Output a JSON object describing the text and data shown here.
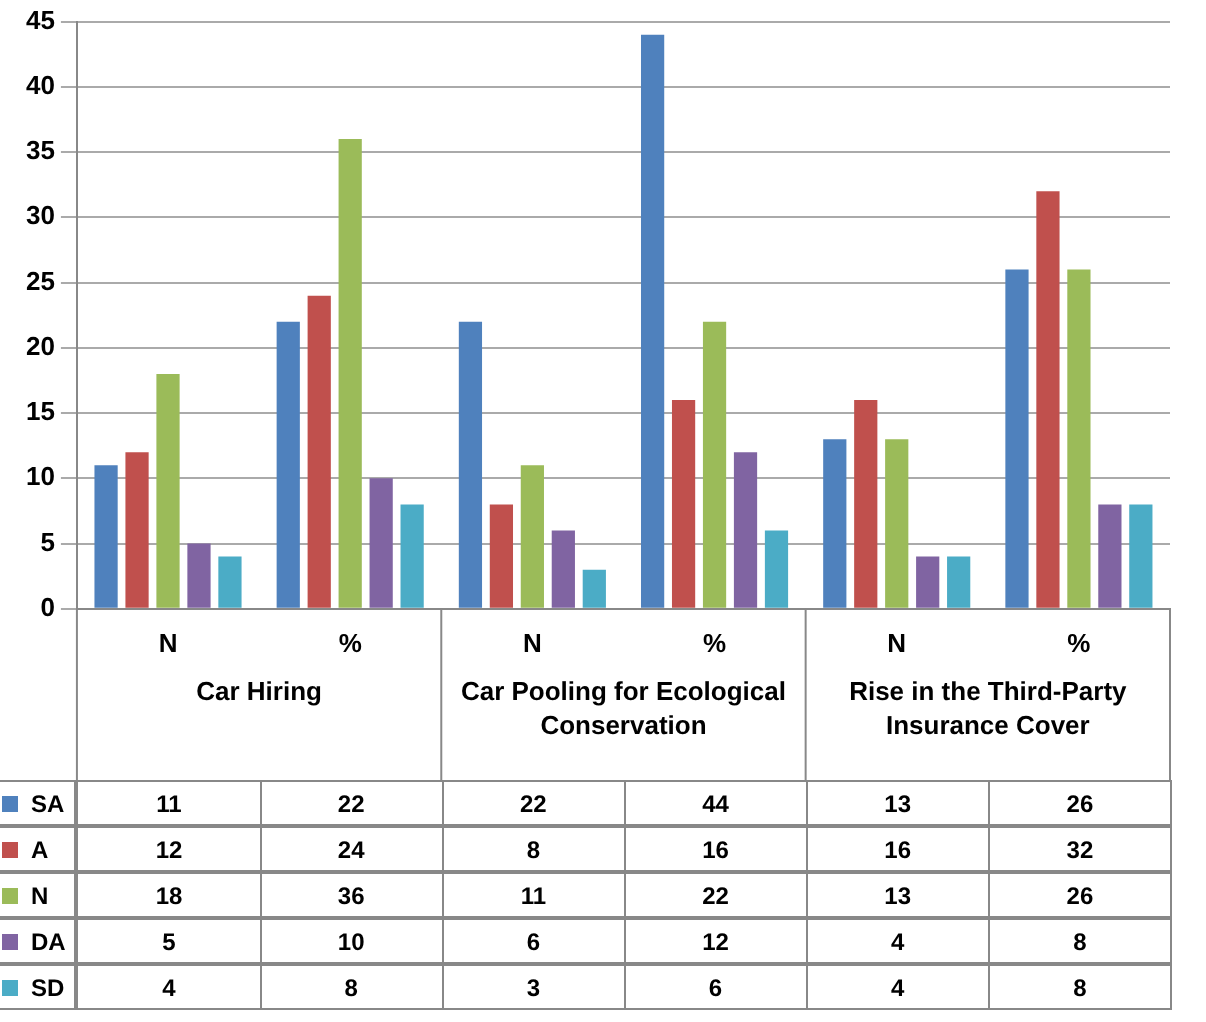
{
  "chart_data": {
    "type": "bar",
    "categories": [
      "N",
      "%",
      "N",
      "%",
      "N",
      "%"
    ],
    "annotations": [
      "Car Hiring",
      "Car Pooling for Ecological Conservation",
      "Rise in the Third-Party Insurance Cover"
    ],
    "series": [
      {
        "name": "SA",
        "color": "#4f81bd",
        "values": [
          11,
          22,
          22,
          44,
          13,
          26
        ]
      },
      {
        "name": "A",
        "color": "#c0504d",
        "values": [
          12,
          24,
          8,
          16,
          16,
          32
        ]
      },
      {
        "name": "N",
        "color": "#9bbb59",
        "values": [
          18,
          36,
          11,
          22,
          13,
          26
        ]
      },
      {
        "name": "DA",
        "color": "#8064a2",
        "values": [
          5,
          10,
          6,
          12,
          4,
          8
        ]
      },
      {
        "name": "SD",
        "color": "#4bacc6",
        "values": [
          4,
          8,
          3,
          6,
          4,
          8
        ]
      }
    ],
    "ylim": [
      0,
      45
    ],
    "yticks": [
      0,
      5,
      10,
      15,
      20,
      25,
      30,
      35,
      40,
      45
    ],
    "grid": "y",
    "legend": "bottom",
    "data_labels": true
  }
}
